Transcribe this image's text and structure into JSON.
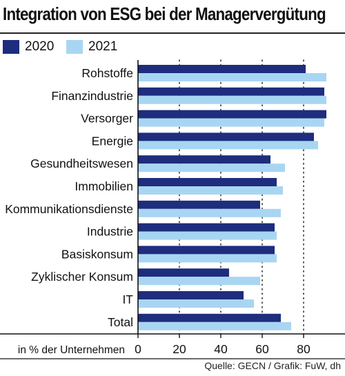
{
  "title": "Integration von ESG bei der Managervergütung",
  "source": "Quelle: GECN / Grafik: FuW, dh",
  "colors": {
    "series_2020": "#1e2d7d",
    "series_2021": "#a8d6f2"
  },
  "chart_data": {
    "type": "bar",
    "orientation": "horizontal",
    "categories": [
      "Rohstoffe",
      "Finanzindustrie",
      "Versorger",
      "Energie",
      "Gesundheitswesen",
      "Immobilien",
      "Kommunikationsdienste",
      "Industrie",
      "Basiskonsum",
      "Zyklischer Konsum",
      "IT",
      "Total"
    ],
    "series": [
      {
        "name": "2020",
        "values": [
          81,
          90,
          91,
          85,
          64,
          67,
          59,
          66,
          66,
          44,
          51,
          69
        ]
      },
      {
        "name": "2021",
        "values": [
          91,
          91,
          90,
          87,
          71,
          70,
          69,
          67,
          67,
          59,
          56,
          74
        ]
      }
    ],
    "xlabel": "in % der Unternehmen",
    "xlim": [
      0,
      100
    ],
    "xticks": [
      0,
      20,
      40,
      60,
      80
    ],
    "gridlines": [
      20,
      40,
      60,
      80
    ],
    "legend": "top-left"
  }
}
